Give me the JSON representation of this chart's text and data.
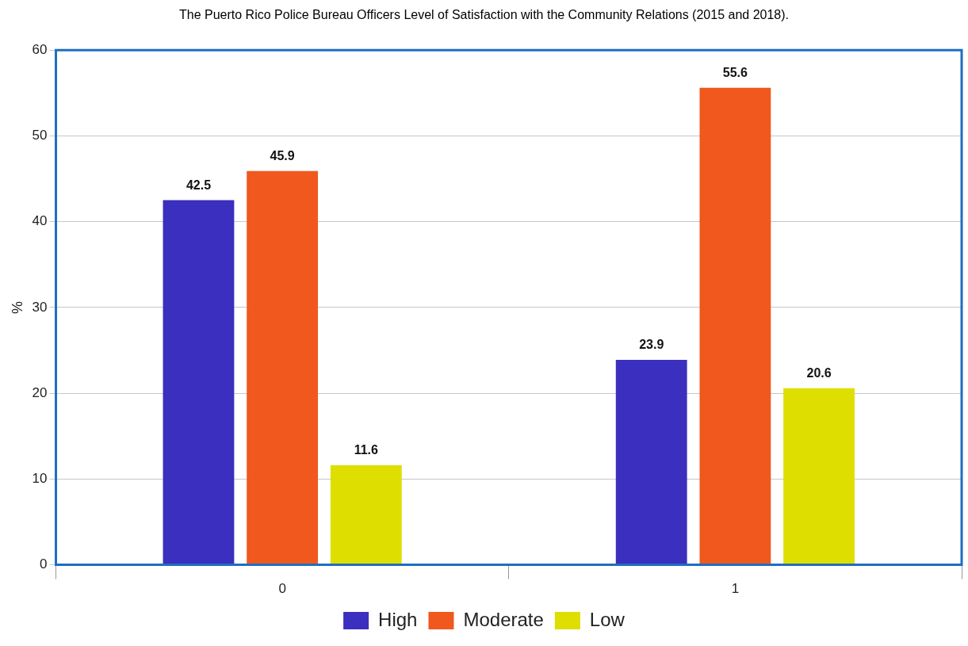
{
  "chart_data": {
    "type": "bar",
    "title": "The Puerto Rico Police Bureau Officers Level of Satisfaction with the Community Relations (2015 and 2018).",
    "ylabel": "%",
    "categories": [
      "0",
      "1"
    ],
    "series": [
      {
        "name": "High",
        "color": "#3a2fbe",
        "values": [
          42.5,
          23.9
        ]
      },
      {
        "name": "Moderate",
        "color": "#f0581e",
        "values": [
          45.9,
          55.6
        ]
      },
      {
        "name": "Low",
        "color": "#dede00",
        "values": [
          11.6,
          20.6
        ]
      }
    ],
    "ylim": [
      0,
      60
    ],
    "yticks": [
      0,
      10,
      20,
      30,
      40,
      50,
      60
    ],
    "grid": "y",
    "legend": "bottom",
    "data_labels": true
  }
}
